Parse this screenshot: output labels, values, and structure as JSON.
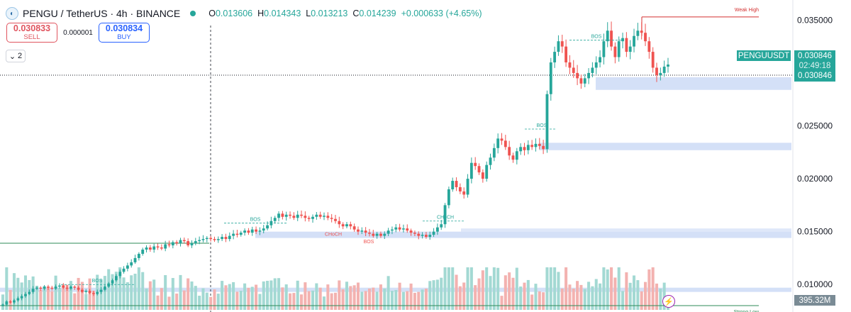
{
  "header": {
    "symbol_title": "PENGU / TetherUS · 4h · BINANCE",
    "ohlc": [
      {
        "key": "O",
        "value": "0.013606"
      },
      {
        "key": "H",
        "value": "0.014343"
      },
      {
        "key": "L",
        "value": "0.013213"
      },
      {
        "key": "C",
        "value": "0.014239"
      },
      {
        "key": "",
        "value": "+0.000633 (+4.65%)"
      }
    ],
    "status_color": "#26a69a"
  },
  "trade": {
    "sell_price": "0.030833",
    "sell_label": "SELL",
    "spread": "0.000001",
    "buy_price": "0.030834",
    "buy_label": "BUY"
  },
  "indicators_toggle": {
    "count": "2",
    "icon": "chevron-down-icon"
  },
  "price_tags": {
    "symbol": "PENGUUSDT",
    "price": "0.030846",
    "countdown": "02:49:18",
    "last": "0.030846",
    "volume": "395.32M"
  },
  "colors": {
    "up": "#26a69a",
    "down": "#ef5350",
    "zone": "#c9d8f5",
    "level_line": "#2e8b57",
    "weak_high": "#d32f2f"
  },
  "chart_data": {
    "type": "candlestick",
    "y_axis": {
      "min": 0.0074,
      "max": 0.0369,
      "ticks": [
        "0.035000",
        "0.030000",
        "0.025000",
        "0.020000",
        "0.015000",
        "0.010000"
      ],
      "tick_values": [
        0.035,
        0.03,
        0.025,
        0.02,
        0.015,
        0.01
      ],
      "position": "right"
    },
    "grid": false,
    "candles_close": [
      0.0081,
      0.0084,
      0.0083,
      0.0085,
      0.0087,
      0.0089,
      0.0091,
      0.0093,
      0.0096,
      0.0097,
      0.0096,
      0.0098,
      0.0097,
      0.0096,
      0.0098,
      0.0099,
      0.0097,
      0.0096,
      0.0098,
      0.0097,
      0.0095,
      0.0093,
      0.0094,
      0.0092,
      0.0091,
      0.0093,
      0.0095,
      0.0098,
      0.0101,
      0.0104,
      0.0108,
      0.0112,
      0.0115,
      0.0118,
      0.0121,
      0.0125,
      0.0129,
      0.0133,
      0.0135,
      0.0133,
      0.0136,
      0.0135,
      0.0134,
      0.0138,
      0.0137,
      0.014,
      0.0139,
      0.0142,
      0.0141,
      0.0137,
      0.0139,
      0.0141,
      0.0142,
      0.0143,
      0.0144,
      0.0143,
      0.0142,
      0.0143,
      0.0145,
      0.0143,
      0.0146,
      0.0148,
      0.0147,
      0.0149,
      0.0151,
      0.0149,
      0.0152,
      0.015,
      0.0151,
      0.0153,
      0.0156,
      0.016,
      0.0163,
      0.0167,
      0.0164,
      0.0166,
      0.0165,
      0.0163,
      0.0166,
      0.0165,
      0.0163,
      0.0162,
      0.0164,
      0.0166,
      0.0164,
      0.0165,
      0.0163,
      0.0162,
      0.016,
      0.0157,
      0.0155,
      0.0157,
      0.0155,
      0.0152,
      0.015,
      0.0151,
      0.0149,
      0.0148,
      0.0146,
      0.0148,
      0.0146,
      0.0148,
      0.0151,
      0.0152,
      0.0154,
      0.0152,
      0.0153,
      0.0151,
      0.0149,
      0.0148,
      0.0146,
      0.0147,
      0.0145,
      0.0147,
      0.015,
      0.0154,
      0.0157,
      0.0175,
      0.019,
      0.0198,
      0.0192,
      0.0188,
      0.0185,
      0.02,
      0.0215,
      0.0212,
      0.0206,
      0.02,
      0.0213,
      0.022,
      0.0229,
      0.0238,
      0.0236,
      0.023,
      0.0222,
      0.0218,
      0.0226,
      0.023,
      0.0227,
      0.0232,
      0.023,
      0.0233,
      0.0231,
      0.0228,
      0.028,
      0.031,
      0.032,
      0.033,
      0.0325,
      0.031,
      0.0305,
      0.03,
      0.0295,
      0.029,
      0.0295,
      0.03,
      0.0305,
      0.031,
      0.0315,
      0.033,
      0.034,
      0.0325,
      0.0315,
      0.033,
      0.0333,
      0.032,
      0.0325,
      0.0335,
      0.034,
      0.0338,
      0.033,
      0.032,
      0.0305,
      0.0298,
      0.03,
      0.0306,
      0.0308
    ],
    "volume_unit": "M",
    "annotations": [
      {
        "text": "BOS",
        "level": 0.01
      },
      {
        "text": "BOS",
        "level": 0.0149
      },
      {
        "text": "CHoCH",
        "level": 0.0147
      },
      {
        "text": "BOS",
        "level": 0.0141
      },
      {
        "text": "CHoCH",
        "level": 0.0153
      },
      {
        "text": "BOS",
        "level": 0.0245
      },
      {
        "text": "BOS",
        "level": 0.0329
      },
      {
        "text": "Weak High",
        "level": 0.0353
      },
      {
        "text": "Strong Low",
        "level": 0.008
      }
    ],
    "zones": [
      {
        "from": 0.0284,
        "to": 0.0296
      },
      {
        "from": 0.0227,
        "to": 0.0234
      },
      {
        "from": 0.0144,
        "to": 0.015
      },
      {
        "from": 0.0093,
        "to": 0.0097
      }
    ]
  }
}
